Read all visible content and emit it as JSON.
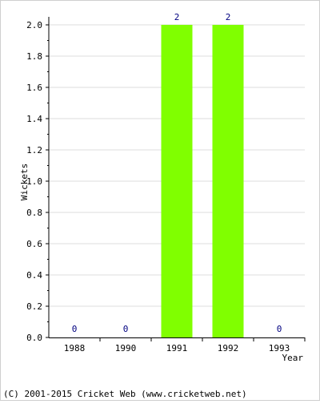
{
  "chart_data": {
    "type": "bar",
    "categories": [
      "1988",
      "1990",
      "1991",
      "1992",
      "1993"
    ],
    "values": [
      0,
      0,
      2,
      2,
      0
    ],
    "data_labels": [
      "0",
      "0",
      "2",
      "2",
      "0"
    ],
    "xlabel": "Year",
    "ylabel": "Wickets",
    "ylim": [
      0,
      2.0
    ],
    "yticks": [
      "0.0",
      "0.2",
      "0.4",
      "0.6",
      "0.8",
      "1.0",
      "1.2",
      "1.4",
      "1.6",
      "1.8",
      "2.0"
    ],
    "grid": "horizontal",
    "bar_color": "#80ff00",
    "label_color": "#000080",
    "gridline_color": "#dddddd"
  },
  "footer": {
    "copyright": "(C) 2001-2015 Cricket Web (www.cricketweb.net)"
  }
}
